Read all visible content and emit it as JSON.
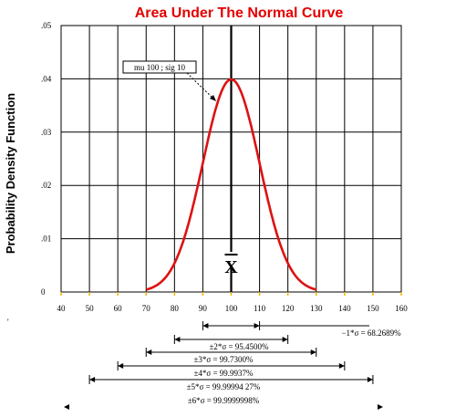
{
  "chart_data": {
    "type": "line",
    "title": "Area Under The Normal Curve",
    "ylabel": "Probability Density Function",
    "xlim": [
      40,
      160
    ],
    "ylim": [
      0,
      0.05
    ],
    "xticks": [
      40,
      50,
      60,
      70,
      80,
      90,
      100,
      110,
      120,
      130,
      140,
      150,
      160
    ],
    "yticks": [
      0,
      0.01,
      0.02,
      0.03,
      0.04,
      0.05
    ],
    "ytick_labels": [
      "0",
      ".01",
      ".02",
      ".03",
      ".04",
      ".05"
    ],
    "grid": true,
    "series": [
      {
        "color": "#dd1111",
        "mu": 100,
        "sigma": 10,
        "x": [
          70,
          75,
          80,
          85,
          90,
          95,
          100,
          105,
          110,
          115,
          120,
          125,
          130
        ],
        "y": [
          0.00044,
          0.00175,
          0.0054,
          0.01295,
          0.0242,
          0.0352,
          0.0399,
          0.0352,
          0.0242,
          0.01295,
          0.0054,
          0.00175,
          0.00044
        ]
      }
    ],
    "annotations": {
      "curve_label": "mu 100 ; sig 10",
      "mean_symbol": "X",
      "left_mark": "'",
      "ranges": [
        {
          "label": "−1*σ = 68.2689%",
          "from": 90,
          "to": 110
        },
        {
          "label": "±2*σ = 95.4500%",
          "from": 80,
          "to": 120
        },
        {
          "label": "±3*σ = 99.7300%",
          "from": 70,
          "to": 130
        },
        {
          "label": "±4*σ = 99.9937%",
          "from": 60,
          "to": 140
        },
        {
          "label": "±5*σ = 99.99994 27%",
          "from": 50,
          "to": 150
        },
        {
          "label": "±6*σ = 99.9999998%",
          "from": 40,
          "to": 160
        }
      ]
    }
  }
}
